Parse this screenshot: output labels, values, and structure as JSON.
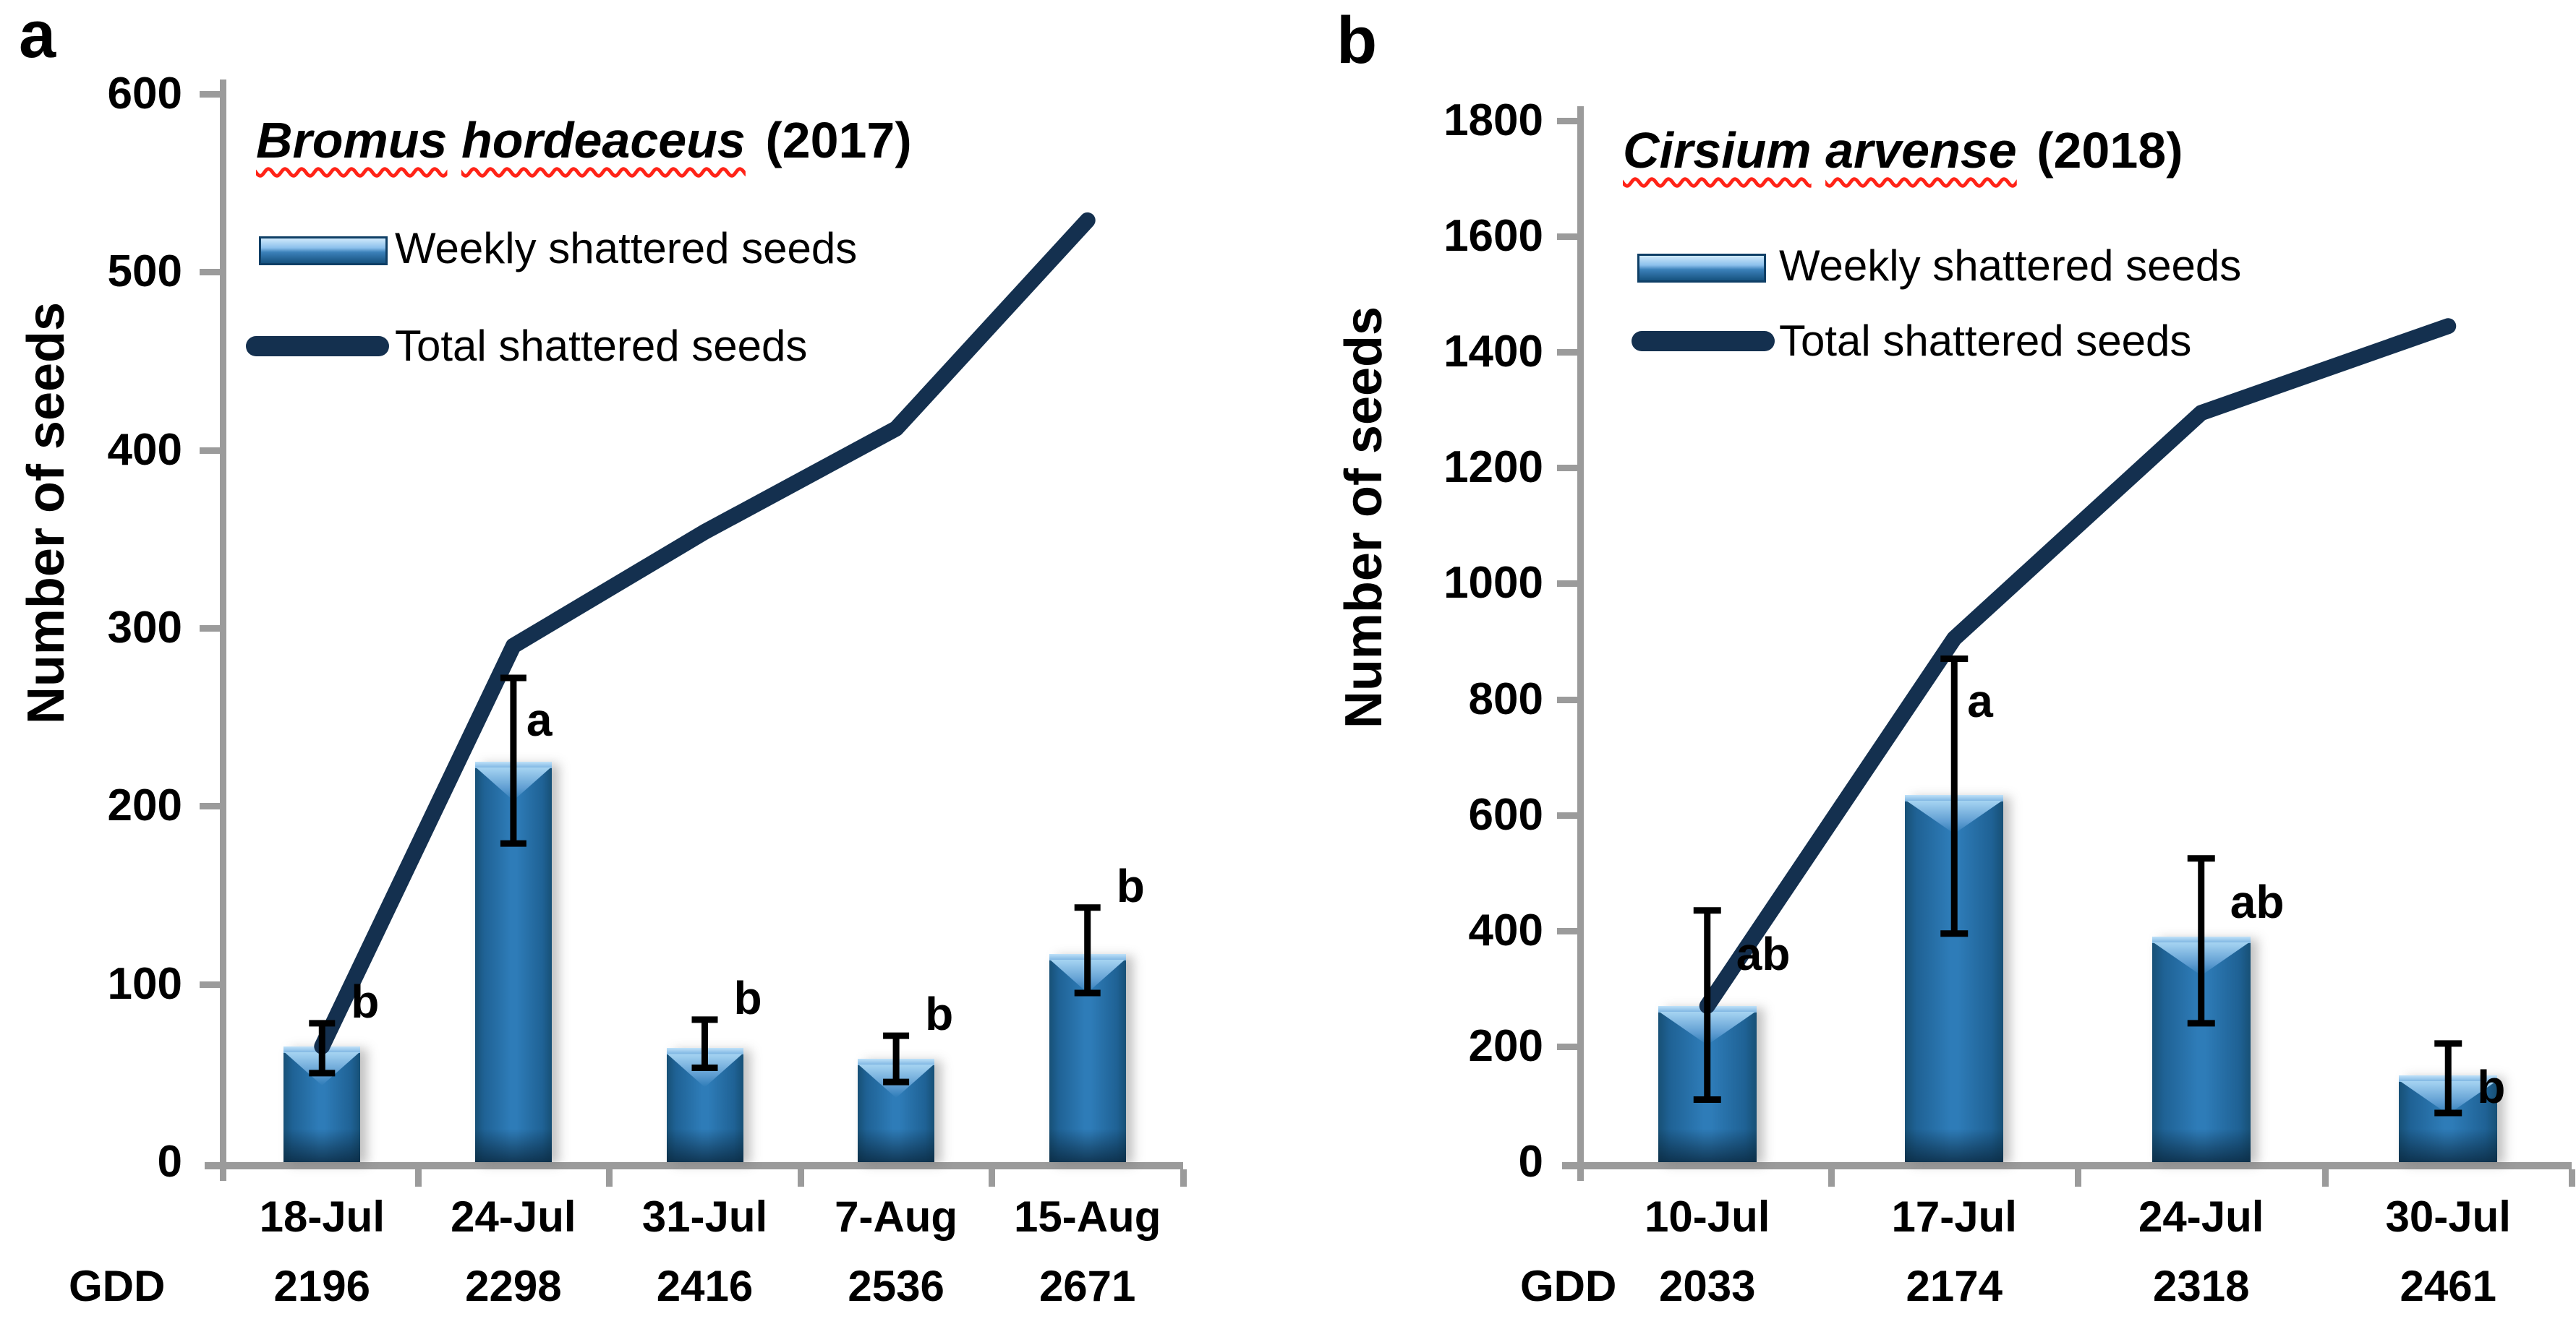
{
  "page": {
    "y_axis_label": "Number of seeds",
    "gdd_label": "GDD",
    "legend": {
      "weekly": "Weekly shattered seeds",
      "total": "Total shattered seeds"
    }
  },
  "chart_data": [
    {
      "panel_label": "a",
      "type": "bar+line",
      "title_words": [
        "Bromus",
        "hordeaceus"
      ],
      "title_year": "(2017)",
      "categories": [
        "18-Jul",
        "24-Jul",
        "31-Jul",
        "7-Aug",
        "15-Aug"
      ],
      "gdd": [
        "2196",
        "2298",
        "2416",
        "2536",
        "2671"
      ],
      "ylim": [
        0,
        600
      ],
      "ytick_step": 100,
      "grid": false,
      "legend_position": "inside-top-left",
      "series": [
        {
          "name": "Weekly shattered seeds",
          "type": "bar",
          "values": [
            65,
            225,
            64,
            58,
            117
          ],
          "error_low": [
            50,
            179,
            53,
            45,
            95
          ],
          "error_high": [
            78,
            272,
            80,
            71,
            143
          ],
          "sig_letters": [
            "b",
            "a",
            "b",
            "b",
            "b"
          ]
        },
        {
          "name": "Total shattered seeds",
          "type": "line",
          "values": [
            65,
            290,
            354,
            412,
            529
          ]
        }
      ]
    },
    {
      "panel_label": "b",
      "type": "bar+line",
      "title_words": [
        "Cirsium",
        "arvense"
      ],
      "title_year": "(2018)",
      "categories": [
        "10-Jul",
        "17-Jul",
        "24-Jul",
        "30-Jul"
      ],
      "gdd": [
        "2033",
        "2174",
        "2318",
        "2461"
      ],
      "ylim": [
        0,
        1800
      ],
      "ytick_step": 200,
      "grid": false,
      "legend_position": "inside-top-left",
      "series": [
        {
          "name": "Weekly shattered seeds",
          "type": "bar",
          "values": [
            270,
            635,
            390,
            150
          ],
          "error_low": [
            108,
            395,
            240,
            85
          ],
          "error_high": [
            435,
            870,
            525,
            205
          ],
          "sig_letters": [
            "ab",
            "a",
            "ab",
            "b"
          ]
        },
        {
          "name": "Total shattered seeds",
          "type": "line",
          "values": [
            270,
            905,
            1295,
            1445
          ]
        }
      ]
    }
  ],
  "colors": {
    "bar_fill": "#2e7cb8",
    "bar_edge": "#175076",
    "bar_highlight": "#a6d4f2",
    "line": "#14304f",
    "axis": "#9b9b9b",
    "error_bar": "#000000",
    "sig_letter": "#000000",
    "spellcheck_underline": "#ff2317"
  }
}
